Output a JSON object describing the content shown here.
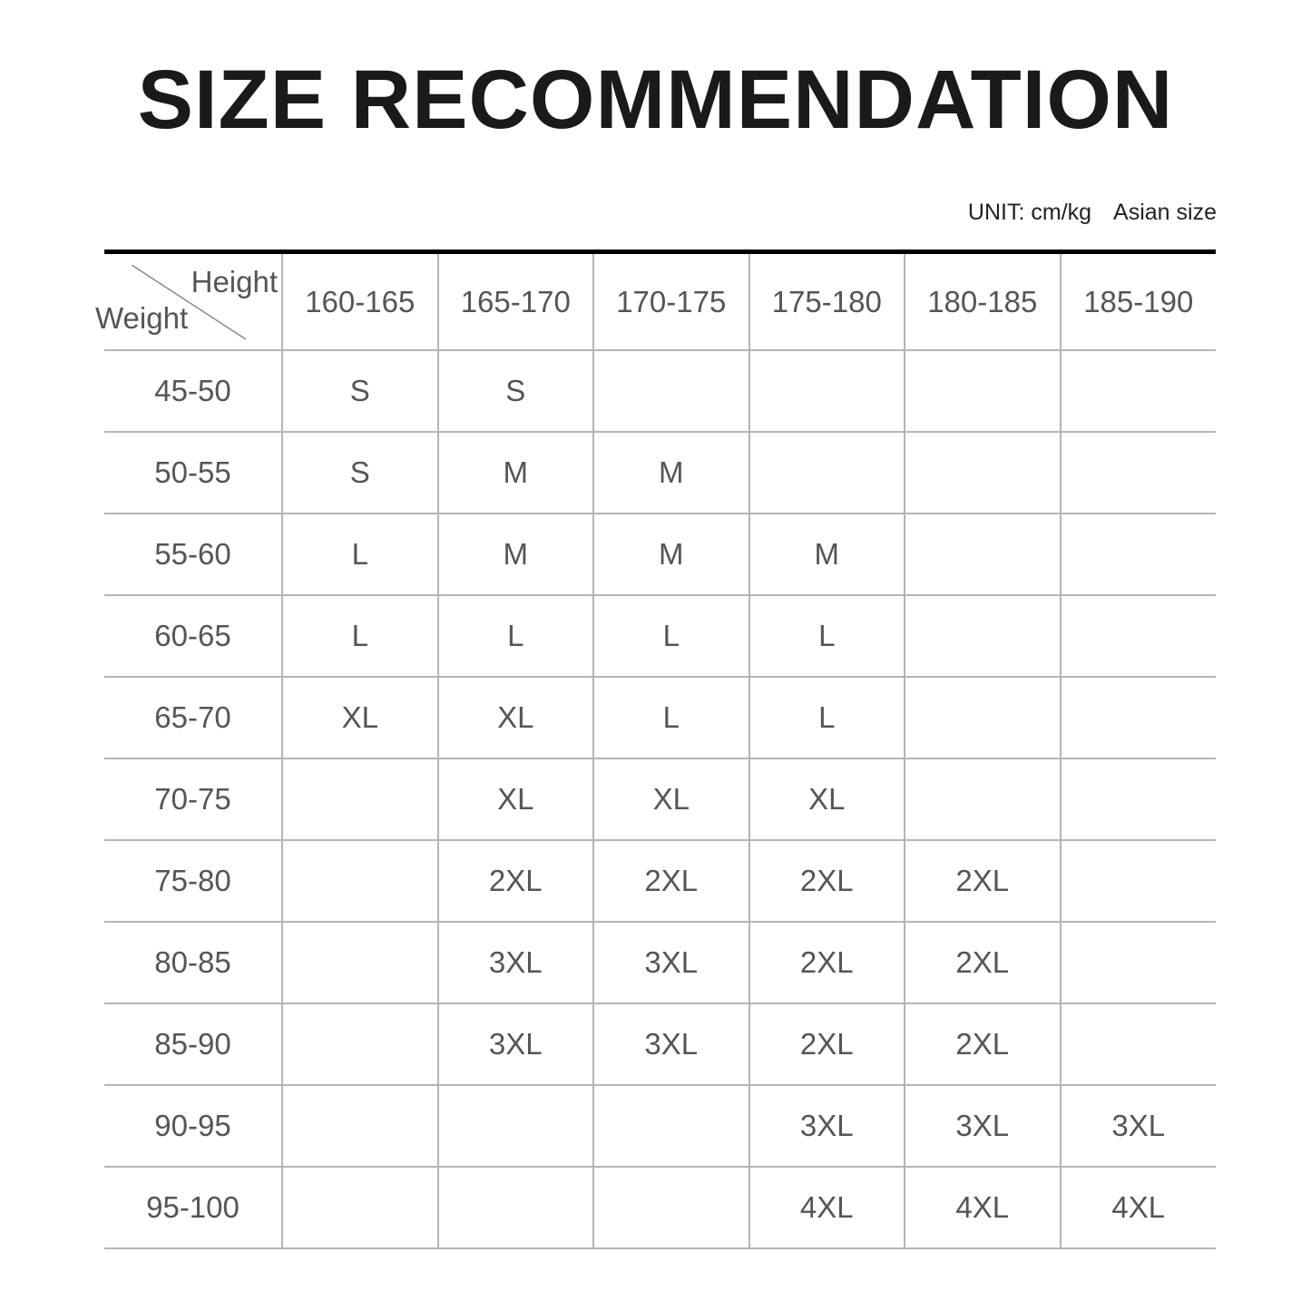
{
  "title": "SIZE RECOMMENDATION",
  "unit": "UNIT: cm/kg",
  "size_system": "Asian size",
  "corner": {
    "column_axis": "Height",
    "row_axis": "Weight"
  },
  "columns": [
    "160-165",
    "165-170",
    "170-175",
    "175-180",
    "180-185",
    "185-190"
  ],
  "rows": [
    {
      "weight": "45-50",
      "sizes": [
        "S",
        "S",
        "",
        "",
        "",
        ""
      ]
    },
    {
      "weight": "50-55",
      "sizes": [
        "S",
        "M",
        "M",
        "",
        "",
        ""
      ]
    },
    {
      "weight": "55-60",
      "sizes": [
        "L",
        "M",
        "M",
        "M",
        "",
        ""
      ]
    },
    {
      "weight": "60-65",
      "sizes": [
        "L",
        "L",
        "L",
        "L",
        "",
        ""
      ]
    },
    {
      "weight": "65-70",
      "sizes": [
        "XL",
        "XL",
        "L",
        "L",
        "",
        ""
      ]
    },
    {
      "weight": "70-75",
      "sizes": [
        "",
        "XL",
        "XL",
        "XL",
        "",
        ""
      ]
    },
    {
      "weight": "75-80",
      "sizes": [
        "",
        "2XL",
        "2XL",
        "2XL",
        "2XL",
        ""
      ]
    },
    {
      "weight": "80-85",
      "sizes": [
        "",
        "3XL",
        "3XL",
        "2XL",
        "2XL",
        ""
      ]
    },
    {
      "weight": "85-90",
      "sizes": [
        "",
        "3XL",
        "3XL",
        "2XL",
        "2XL",
        ""
      ]
    },
    {
      "weight": "90-95",
      "sizes": [
        "",
        "",
        "",
        "3XL",
        "3XL",
        "3XL"
      ]
    },
    {
      "weight": "95-100",
      "sizes": [
        "",
        "",
        "",
        "4XL",
        "4XL",
        "4XL"
      ]
    }
  ]
}
